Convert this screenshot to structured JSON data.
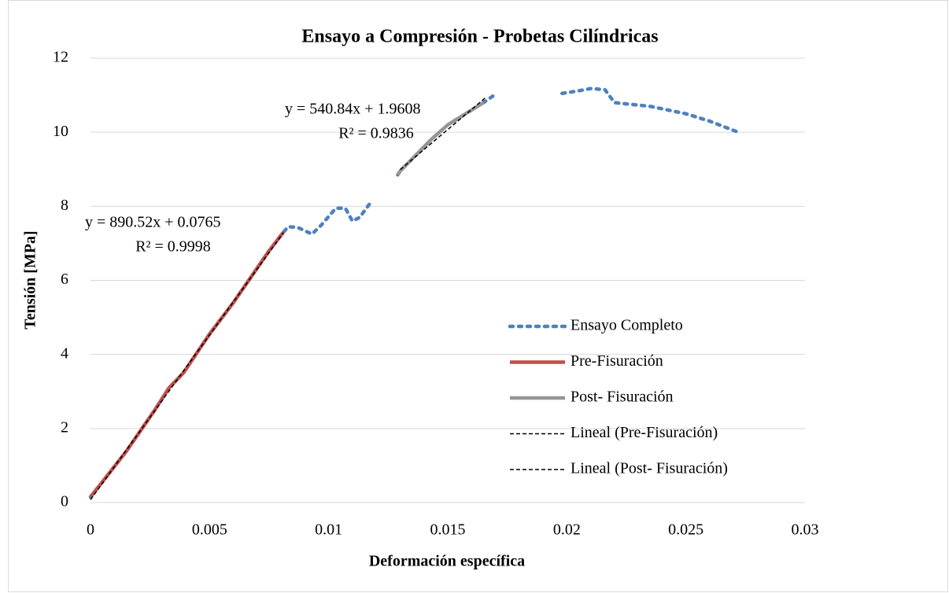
{
  "chart_data": {
    "type": "line",
    "title": "Ensayo a Compresión - Probetas Cilíndricas",
    "x_label": "Deformación específica",
    "y_label": "Tensión [MPa]",
    "xlim": [
      0,
      0.03
    ],
    "xticks": [
      0,
      0.005,
      0.01,
      0.015,
      0.02,
      0.025,
      0.03
    ],
    "ylim": [
      0,
      12
    ],
    "yticks": [
      0,
      2,
      4,
      6,
      8,
      10,
      12
    ],
    "grid": true,
    "legend": "right",
    "series": [
      {
        "name": "Ensayo Completo",
        "color": "#4f81bd",
        "style": "dotted",
        "x": [
          0,
          0.0015,
          0.0027,
          0.0033,
          0.0039,
          0.005,
          0.006,
          0.0075,
          0.0081,
          0.0083,
          0.0087,
          0.0093,
          0.0097,
          0.0103,
          0.0107,
          0.011,
          0.0113,
          0.0117,
          0.0119,
          0.0124,
          0.0129,
          0.013,
          0.0143,
          0.015,
          0.016,
          0.0165,
          0.0169,
          0.0184,
          0.0198,
          0.0205,
          0.021,
          0.0216,
          0.022,
          0.0235,
          0.025,
          0.026,
          0.0272
        ],
        "values": [
          0.15,
          1.38,
          2.5,
          3.1,
          3.5,
          4.55,
          5.4,
          6.8,
          7.3,
          7.45,
          7.43,
          7.25,
          7.5,
          7.95,
          7.95,
          7.6,
          7.7,
          8.05,
          8.1,
          null,
          8.85,
          8.95,
          9.8,
          10.2,
          10.6,
          10.8,
          10.98,
          null,
          11.05,
          11.12,
          11.18,
          11.15,
          10.8,
          10.7,
          10.5,
          10.3,
          10.0
        ]
      },
      {
        "name": "Pre-Fisuración",
        "color": "#c0504d",
        "style": "solid",
        "x": [
          0,
          0.0015,
          0.0027,
          0.0033,
          0.0039,
          0.005,
          0.006,
          0.0075,
          0.0081
        ],
        "values": [
          0.15,
          1.38,
          2.5,
          3.1,
          3.5,
          4.55,
          5.4,
          6.8,
          7.3
        ]
      },
      {
        "name": "Post- Fisuración",
        "color": "#969696",
        "style": "solid",
        "x": [
          0.0129,
          0.013,
          0.0143,
          0.015,
          0.016,
          0.0165
        ],
        "values": [
          8.85,
          8.95,
          9.8,
          10.2,
          10.6,
          10.8
        ]
      },
      {
        "name": "Lineal (Pre-Fisuración)",
        "color": "#000000",
        "style": "dashed",
        "x": [
          0,
          0.0081
        ],
        "values": [
          0.0765,
          7.29
        ]
      },
      {
        "name": "Lineal (Post- Fisuración)",
        "color": "#000000",
        "style": "dashed",
        "x": [
          0.013,
          0.0166
        ],
        "values": [
          8.99,
          10.94
        ]
      }
    ],
    "annotations": [
      "y = 890.52x  + 0.0765",
      "R² = 0.9998",
      "y = 540.84x  + 1.9608",
      "R² = 0.9836"
    ]
  }
}
